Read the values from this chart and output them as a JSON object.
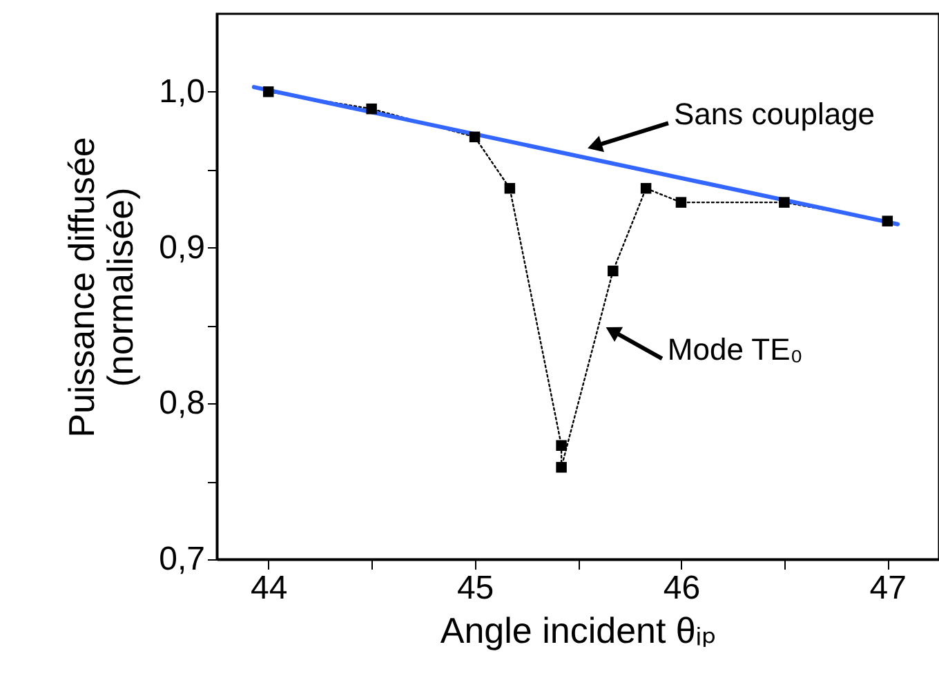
{
  "chart_data": {
    "type": "line",
    "xlabel": "Angle incident θᵢₚ",
    "ylabel": "Puissance diffusée\n(normalisée)",
    "xlim": [
      43.75,
      47.25
    ],
    "ylim": [
      0.7,
      1.05
    ],
    "xticks": [
      44,
      {
        "value": 44.5,
        "label": null
      },
      45,
      {
        "value": 45.5,
        "label": null
      },
      46,
      {
        "value": 46.5,
        "label": null
      },
      47
    ],
    "yticks": [
      {
        "value": 0.7,
        "label": "0,7"
      },
      {
        "value": 0.75,
        "label": null
      },
      {
        "value": 0.8,
        "label": "0,8"
      },
      {
        "value": 0.85,
        "label": null
      },
      {
        "value": 0.9,
        "label": "0,9"
      },
      {
        "value": 0.95,
        "label": null
      },
      {
        "value": 1,
        "label": "1,0"
      }
    ],
    "grid": false,
    "series": [
      {
        "color": "#000000",
        "marker": "square",
        "line_style": "dotted",
        "x": [
          44,
          44.5,
          45,
          45.17,
          45.42,
          45.42,
          45.67,
          45.83,
          46,
          46.5,
          47
        ],
        "values": [
          1.0,
          0.989,
          0.971,
          0.938,
          0.773,
          0.759,
          0.885,
          0.938,
          0.929,
          0.929,
          0.917
        ]
      },
      {
        "color": "#3366ff",
        "marker": "none",
        "line_style": "solid",
        "x": [
          43.93,
          47.05
        ],
        "values": [
          1.003,
          0.915
        ]
      }
    ],
    "annotations": [
      {
        "text": "Sans couplage",
        "x": 45.53,
        "y": 0.963
      },
      {
        "text": "Mode TE₀",
        "x": 45.62,
        "y": 0.85
      }
    ]
  }
}
